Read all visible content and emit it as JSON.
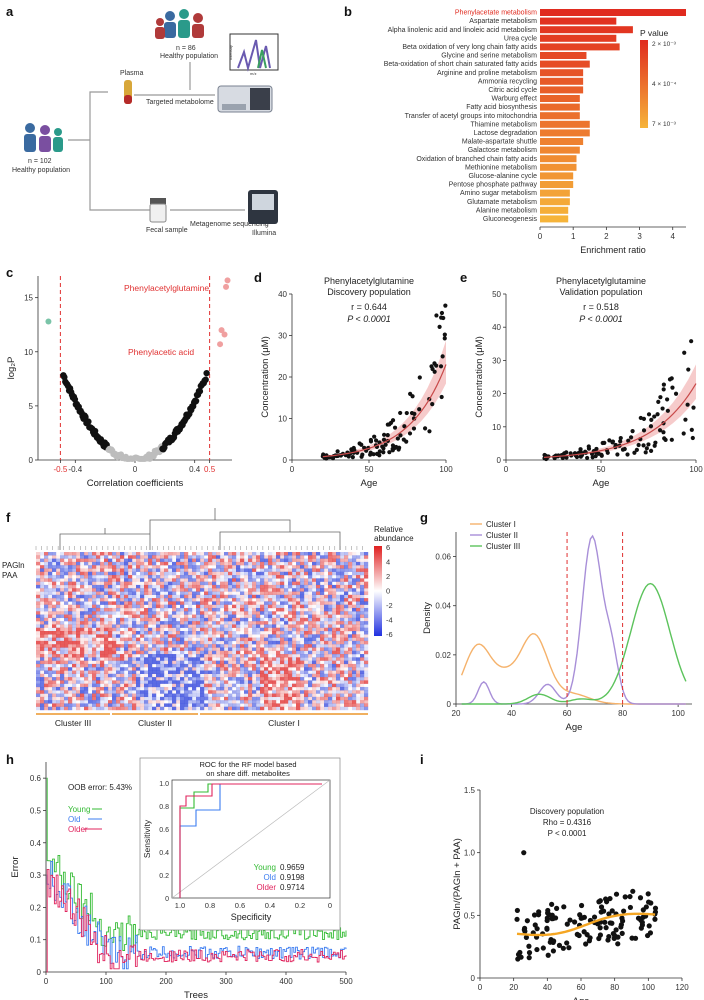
{
  "figure": {
    "panel_labels": [
      "a",
      "b",
      "c",
      "d",
      "e",
      "f",
      "g",
      "h",
      "i"
    ]
  },
  "panel_a": {
    "n_top": "n = 86",
    "top_population": "Healthy population",
    "plasma": "Plasma",
    "targeted": "Targeted metabolome",
    "n_left": "n = 102",
    "left_population": "Healthy population",
    "fecal": "Fecal sample",
    "metagenome": "Metagenome sequencing",
    "illumina": "Illumina",
    "small_labels": [
      "Intensity",
      "m/z"
    ]
  },
  "chart_data": [
    {
      "id": "b",
      "type": "bar",
      "categories": [
        "Phenylacetate metabolism",
        "Aspartate metabolism",
        "Alpha linolenic acid and linoleic acid metabolism",
        "Urea cycle",
        "Beta oxidation of very long chain fatty acids",
        "Glycine and serine metabolism",
        "Beta-oxidation of short chain saturated fatty acids",
        "Arginine and proline metabolism",
        "Ammonia recycling",
        "Citric acid cycle",
        "Warburg effect",
        "Fatty acid biosynthesis",
        "Transfer of acetyl groups into mitochondria",
        "Thiamine metabolism",
        "Lactose degradation",
        "Malate-aspartate shuttle",
        "Galactose metabolism",
        "Oxidation of branched chain fatty acids",
        "Methionine metabolism",
        "Glucose-alanine cycle",
        "Pentose phosphate pathway",
        "Amino sugar metabolism",
        "Glutamate metabolism",
        "Alanine metabolism",
        "Gluconeogenesis"
      ],
      "values": [
        4.4,
        2.3,
        2.8,
        2.3,
        2.4,
        1.4,
        1.5,
        1.3,
        1.3,
        1.3,
        1.2,
        1.2,
        1.2,
        1.5,
        1.5,
        1.3,
        1.2,
        1.1,
        1.1,
        1.0,
        1.0,
        0.9,
        0.9,
        0.85,
        0.85
      ],
      "highlight": "Phenylacetate metabolism",
      "xlabel": "Enrichment ratio",
      "xlim": [
        0,
        4.4
      ],
      "xticks": [
        "0",
        "1",
        "2",
        "3",
        "4"
      ],
      "legend_title": "P value",
      "legend_ticks": [
        "2 × 10⁻³",
        "4 × 10⁻⁴",
        "7 × 10⁻³"
      ],
      "colors": {
        "high": "#e02b1f",
        "low": "#f6b43a",
        "highlight_text": "#e02b1f"
      }
    },
    {
      "id": "c",
      "type": "scatter",
      "xlabel": "Correlation coefficients",
      "ylabel": "log₂P",
      "xlim": [
        -0.65,
        0.65
      ],
      "ylim": [
        0,
        17
      ],
      "xticks": [
        "-0.5",
        "-0.4",
        "0",
        "0.4",
        "0.5"
      ],
      "yticks": [
        "0",
        "5",
        "10",
        "15"
      ],
      "cutoffs": [
        -0.5,
        0.5
      ],
      "annotations": [
        "Phenylacetylglutamine",
        "Phenylacetic acid"
      ],
      "highlight_points": [
        {
          "x": 0.61,
          "y": 16.0
        },
        {
          "x": 0.57,
          "y": 10.7
        },
        {
          "x": 0.6,
          "y": 11.6
        },
        {
          "x": 0.58,
          "y": 12.0
        },
        {
          "x": 0.62,
          "y": 16.6
        }
      ],
      "teal_point": {
        "x": -0.58,
        "y": 12.8
      }
    },
    {
      "id": "d",
      "type": "scatter",
      "title": "Phenylacetylglutamine",
      "subtitle": "Discovery population",
      "r": "r = 0.644",
      "p": "P < 0.0001",
      "xlabel": "Age",
      "ylabel": "Concentration (μM)",
      "xlim": [
        0,
        100
      ],
      "ylim": [
        0,
        40
      ],
      "xticks": [
        "0",
        "50",
        "100"
      ],
      "yticks": [
        "0",
        "10",
        "20",
        "30",
        "40"
      ]
    },
    {
      "id": "e",
      "type": "scatter",
      "title": "Phenylacetylglutamine",
      "subtitle": "Validation population",
      "r": "r = 0.518",
      "p": "P < 0.0001",
      "xlabel": "Age",
      "ylabel": "Concentration (μM)",
      "xlim": [
        0,
        100
      ],
      "ylim": [
        0,
        50
      ],
      "xticks": [
        "0",
        "50",
        "100"
      ],
      "yticks": [
        "0",
        "10",
        "20",
        "30",
        "40",
        "50"
      ]
    },
    {
      "id": "f",
      "type": "heatmap",
      "row_labels": [
        "PAGln",
        "PAA"
      ],
      "col_groups": [
        "Cluster III",
        "Cluster II",
        "Cluster I"
      ],
      "legend_title": "Relative abundance",
      "legend_ticks": [
        "6",
        "4",
        "2",
        "0",
        "-2",
        "-4",
        "-6"
      ]
    },
    {
      "id": "g",
      "type": "line",
      "xlabel": "Age",
      "ylabel": "Density",
      "xlim": [
        20,
        105
      ],
      "ylim": [
        0,
        0.07
      ],
      "xticks": [
        "20",
        "40",
        "60",
        "80",
        "100"
      ],
      "yticks": [
        "0",
        "0.02",
        "0.04",
        "0.06"
      ],
      "series": [
        {
          "name": "Cluster I",
          "color": "#f5b26b"
        },
        {
          "name": "Cluster II",
          "color": "#a88fd8"
        },
        {
          "name": "Cluster III",
          "color": "#5cc35c"
        }
      ],
      "cutoffs": [
        60,
        80
      ]
    },
    {
      "id": "h",
      "type": "line",
      "xlabel": "Trees",
      "ylabel": "Error",
      "oob": "OOB error: 5.43%",
      "xlim": [
        0,
        500
      ],
      "ylim": [
        0,
        0.65
      ],
      "xticks": [
        "0",
        "100",
        "200",
        "300",
        "400",
        "500"
      ],
      "yticks": [
        "0",
        "0.1",
        "0.2",
        "0.3",
        "0.4",
        "0.5",
        "0.6"
      ],
      "series": [
        {
          "name": "Young",
          "color": "#33bb33"
        },
        {
          "name": "Old",
          "color": "#3b7cf0"
        },
        {
          "name": "Older",
          "color": "#e0245e"
        }
      ],
      "inset": {
        "title_line1": "ROC for the RF model based",
        "title_line2": "on share diff. metabolites",
        "xlabel": "Specificity",
        "ylabel": "Sensitivity",
        "xticks": [
          "1.0",
          "0.8",
          "0.6",
          "0.4",
          "0.2",
          "0"
        ],
        "yticks": [
          "0",
          "0.2",
          "0.4",
          "0.6",
          "0.8",
          "1.0"
        ],
        "auc": [
          {
            "name": "Young",
            "value": "0.9659"
          },
          {
            "name": "Old",
            "value": "0.9198"
          },
          {
            "name": "Older",
            "value": "0.9714"
          }
        ]
      }
    },
    {
      "id": "i",
      "type": "scatter",
      "title": "Discovery population",
      "rho": "Rho = 0.4316",
      "p": "P < 0.0001",
      "xlabel": "Age",
      "ylabel": "PAGln/(PAGln + PAA)",
      "xlim": [
        0,
        120
      ],
      "ylim": [
        0,
        1.5
      ],
      "xticks": [
        "0",
        "20",
        "40",
        "60",
        "80",
        "100",
        "120"
      ],
      "yticks": [
        "0",
        "0.5",
        "1.0",
        "1.5"
      ],
      "fit_color": "#f5a623"
    }
  ]
}
